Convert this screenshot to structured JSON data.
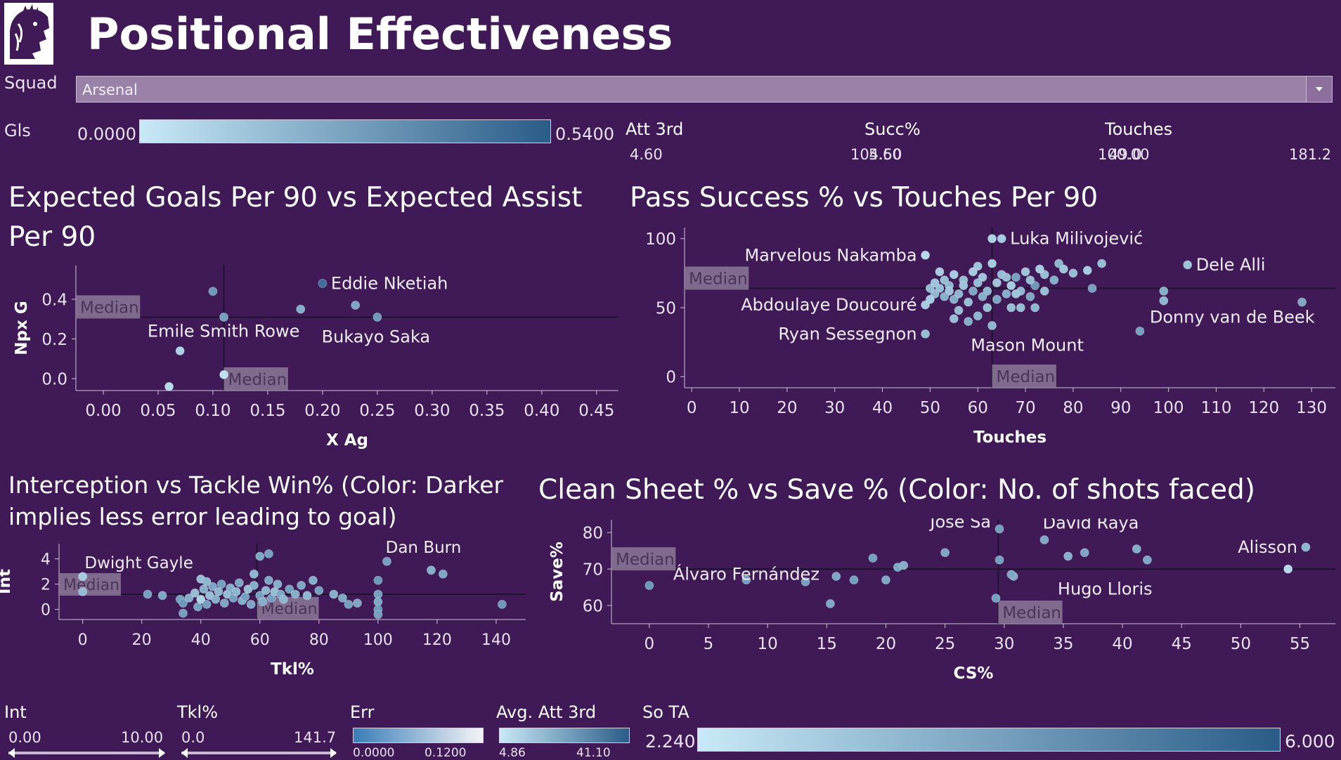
{
  "page": {
    "title": "Positional Effectiveness"
  },
  "squad": {
    "label": "Squad",
    "value": "Arsenal"
  },
  "colors": {
    "background": "#3f1a56",
    "marker_dark": "#2d5f8b",
    "marker_mid": "#4a8bc0",
    "marker_light": "#bfe3f4",
    "median_box": "#8c7a98",
    "median_line": "#1f1430"
  },
  "legends": {
    "gls": {
      "label": "Gls",
      "min": "0.0000",
      "max": "0.5400"
    },
    "att3rd": {
      "label": "Att 3rd",
      "min": "4.60",
      "max": "104.50"
    },
    "succ": {
      "label": "Succ%",
      "min": "5.60",
      "max": "100.00"
    },
    "touches": {
      "label": "Touches",
      "min": "49.0",
      "max": "181.2"
    },
    "int": {
      "label": "Int",
      "min": "0.00",
      "max": "10.00"
    },
    "tkl": {
      "label": "Tkl%",
      "min": "0.0",
      "max": "141.7"
    },
    "err": {
      "label": "Err",
      "min": "0.0000",
      "max": "0.1200"
    },
    "avgatt": {
      "label": "Avg. Att 3rd",
      "min": "4.86",
      "max": "41.10"
    },
    "sota": {
      "label": "So TA",
      "min": "2.240",
      "max": "6.000"
    }
  },
  "chart_data": [
    {
      "id": "xg",
      "type": "scatter",
      "title": "Expected Goals Per 90 vs Expected Assist Per 90",
      "xlabel": "X Ag",
      "ylabel": "Npx G",
      "xlim": [
        -0.025,
        0.47
      ],
      "ylim": [
        -0.06,
        0.57
      ],
      "xticks": [
        0.0,
        0.05,
        0.1,
        0.15,
        0.2,
        0.25,
        0.3,
        0.35,
        0.4,
        0.45
      ],
      "xtick_labels": [
        "0.00",
        "0.05",
        "0.10",
        "0.15",
        "0.20",
        "0.25",
        "0.30",
        "0.35",
        "0.40",
        "0.45"
      ],
      "yticks": [
        0.0,
        0.2,
        0.4
      ],
      "ytick_labels": [
        "0.0",
        "0.2",
        "0.4"
      ],
      "median_x": 0.11,
      "median_y": 0.31,
      "median_label": "Median",
      "points": [
        {
          "x": 0.2,
          "y": 0.48,
          "c": 0.85,
          "label": "Eddie Nketiah"
        },
        {
          "x": 0.1,
          "y": 0.44,
          "c": 0.55
        },
        {
          "x": 0.23,
          "y": 0.37,
          "c": 0.45
        },
        {
          "x": 0.18,
          "y": 0.35,
          "c": 0.4
        },
        {
          "x": 0.11,
          "y": 0.31,
          "c": 0.5
        },
        {
          "x": 0.25,
          "y": 0.31,
          "c": 0.55,
          "label": "Bukayo Saka"
        },
        {
          "x": 0.07,
          "y": 0.14,
          "c": 0.15,
          "label": "Emile Smith Rowe"
        },
        {
          "x": 0.11,
          "y": 0.02,
          "c": 0.05
        },
        {
          "x": 0.06,
          "y": -0.04,
          "c": 0.1
        }
      ]
    },
    {
      "id": "pass",
      "type": "scatter",
      "title": "Pass Success % vs Touches Per 90",
      "xlabel": "Touches",
      "ylabel": "",
      "xlim": [
        -1.5,
        135
      ],
      "ylim": [
        -8,
        108
      ],
      "xticks": [
        0,
        10,
        20,
        30,
        40,
        50,
        60,
        70,
        80,
        90,
        100,
        110,
        120,
        130
      ],
      "xtick_labels": [
        "0",
        "10",
        "20",
        "30",
        "40",
        "50",
        "60",
        "70",
        "80",
        "90",
        "100",
        "110",
        "120",
        "130"
      ],
      "yticks": [
        0,
        50,
        100
      ],
      "ytick_labels": [
        "0",
        "50",
        "100"
      ],
      "median_x": 63,
      "median_y": 64,
      "median_label": "Median",
      "points": [
        {
          "x": 65,
          "y": 100,
          "c": 0.2,
          "label": "Luka Milivojević"
        },
        {
          "x": 63,
          "y": 100,
          "c": 0.15
        },
        {
          "x": 49,
          "y": 88,
          "c": 0.1,
          "label": "Marvelous Nakamba"
        },
        {
          "x": 104,
          "y": 81,
          "c": 0.25,
          "label": "Dele Alli"
        },
        {
          "x": 49,
          "y": 52,
          "c": 0.2,
          "label": "Abdoulaye Doucouré"
        },
        {
          "x": 94,
          "y": 33,
          "c": 0.5,
          "label": "Donny van de Beek"
        },
        {
          "x": 49,
          "y": 31,
          "c": 0.3,
          "label": "Ryan Sessegnon"
        },
        {
          "x": 63,
          "y": 37,
          "c": 0.35,
          "label": "Mason Mount"
        },
        {
          "x": 128,
          "y": 54,
          "c": 0.45
        },
        {
          "x": 99,
          "y": 62,
          "c": 0.4
        },
        {
          "x": 99,
          "y": 55,
          "c": 0.35
        },
        {
          "x": 86,
          "y": 82,
          "c": 0.3
        },
        {
          "x": 84,
          "y": 64,
          "c": 0.5
        },
        {
          "x": 83,
          "y": 77,
          "c": 0.2
        },
        {
          "x": 80,
          "y": 75,
          "c": 0.3
        },
        {
          "x": 78,
          "y": 78,
          "c": 0.25
        },
        {
          "x": 77,
          "y": 82,
          "c": 0.35
        },
        {
          "x": 76,
          "y": 70,
          "c": 0.4
        },
        {
          "x": 74,
          "y": 74,
          "c": 0.3
        },
        {
          "x": 73,
          "y": 78,
          "c": 0.2
        },
        {
          "x": 72,
          "y": 66,
          "c": 0.55
        },
        {
          "x": 71,
          "y": 70,
          "c": 0.3
        },
        {
          "x": 71,
          "y": 58,
          "c": 0.45
        },
        {
          "x": 70,
          "y": 76,
          "c": 0.25
        },
        {
          "x": 69,
          "y": 62,
          "c": 0.35
        },
        {
          "x": 69,
          "y": 50,
          "c": 0.3
        },
        {
          "x": 68,
          "y": 72,
          "c": 0.5
        },
        {
          "x": 67,
          "y": 66,
          "c": 0.2
        },
        {
          "x": 67,
          "y": 50,
          "c": 0.3
        },
        {
          "x": 66,
          "y": 60,
          "c": 0.4
        },
        {
          "x": 65,
          "y": 74,
          "c": 0.3
        },
        {
          "x": 64,
          "y": 68,
          "c": 0.25
        },
        {
          "x": 64,
          "y": 56,
          "c": 0.45
        },
        {
          "x": 63,
          "y": 82,
          "c": 0.2
        },
        {
          "x": 62,
          "y": 62,
          "c": 0.35
        },
        {
          "x": 62,
          "y": 50,
          "c": 0.3
        },
        {
          "x": 61,
          "y": 72,
          "c": 0.25
        },
        {
          "x": 61,
          "y": 58,
          "c": 0.4
        },
        {
          "x": 60,
          "y": 68,
          "c": 0.3
        },
        {
          "x": 60,
          "y": 44,
          "c": 0.35
        },
        {
          "x": 59,
          "y": 76,
          "c": 0.2
        },
        {
          "x": 59,
          "y": 62,
          "c": 0.45
        },
        {
          "x": 58,
          "y": 54,
          "c": 0.3
        },
        {
          "x": 58,
          "y": 40,
          "c": 0.4
        },
        {
          "x": 57,
          "y": 70,
          "c": 0.3
        },
        {
          "x": 57,
          "y": 66,
          "c": 0.25
        },
        {
          "x": 56,
          "y": 60,
          "c": 0.35
        },
        {
          "x": 56,
          "y": 48,
          "c": 0.3
        },
        {
          "x": 55,
          "y": 74,
          "c": 0.2
        },
        {
          "x": 55,
          "y": 56,
          "c": 0.4
        },
        {
          "x": 55,
          "y": 42,
          "c": 0.3
        },
        {
          "x": 54,
          "y": 66,
          "c": 0.35
        },
        {
          "x": 54,
          "y": 62,
          "c": 0.25
        },
        {
          "x": 53,
          "y": 70,
          "c": 0.3
        },
        {
          "x": 53,
          "y": 58,
          "c": 0.4
        },
        {
          "x": 52,
          "y": 76,
          "c": 0.2
        },
        {
          "x": 52,
          "y": 64,
          "c": 0.3
        },
        {
          "x": 51,
          "y": 68,
          "c": 0.25
        },
        {
          "x": 51,
          "y": 60,
          "c": 0.35
        },
        {
          "x": 50,
          "y": 64,
          "c": 0.3
        },
        {
          "x": 50,
          "y": 56,
          "c": 0.2
        },
        {
          "x": 66,
          "y": 72,
          "c": 0.3
        },
        {
          "x": 68,
          "y": 60,
          "c": 0.25
        },
        {
          "x": 72,
          "y": 50,
          "c": 0.35
        },
        {
          "x": 74,
          "y": 62,
          "c": 0.3
        },
        {
          "x": 60,
          "y": 80,
          "c": 0.25
        }
      ]
    },
    {
      "id": "int",
      "type": "scatter",
      "title": "Interception vs Tackle Win% (Color: Darker implies less error leading to goal)",
      "xlabel": "Tkl%",
      "ylabel": "Int",
      "xlim": [
        -8,
        150
      ],
      "ylim": [
        -0.8,
        5.2
      ],
      "xticks": [
        0,
        20,
        40,
        60,
        80,
        100,
        120,
        140
      ],
      "xtick_labels": [
        "0",
        "20",
        "40",
        "60",
        "80",
        "100",
        "120",
        "140"
      ],
      "yticks": [
        0,
        2,
        4
      ],
      "ytick_labels": [
        "0",
        "2",
        "4"
      ],
      "median_x": 59,
      "median_y": 1.2,
      "median_label": "Median",
      "points": [
        {
          "x": 0,
          "y": 2.6,
          "c": 0.2,
          "label": "Dwight Gayle"
        },
        {
          "x": 103,
          "y": 3.8,
          "c": 0.5,
          "label": "Dan Burn"
        },
        {
          "x": 0,
          "y": 1.4,
          "c": 0.3
        },
        {
          "x": 118,
          "y": 3.1,
          "c": 0.4
        },
        {
          "x": 122,
          "y": 2.8,
          "c": 0.45
        },
        {
          "x": 142,
          "y": 0.4,
          "c": 0.55
        },
        {
          "x": 63,
          "y": 4.4,
          "c": 0.5
        },
        {
          "x": 60,
          "y": 4.2,
          "c": 0.45
        },
        {
          "x": 100,
          "y": 2.3,
          "c": 0.55
        },
        {
          "x": 100,
          "y": 1.2,
          "c": 0.5
        },
        {
          "x": 100,
          "y": 0.6,
          "c": 0.45
        },
        {
          "x": 100,
          "y": 0.0,
          "c": 0.55
        },
        {
          "x": 100,
          "y": -0.4,
          "c": 0.5
        },
        {
          "x": 88,
          "y": 0.9,
          "c": 0.45
        },
        {
          "x": 85,
          "y": 1.2,
          "c": 0.4
        },
        {
          "x": 90,
          "y": 0.4,
          "c": 0.5
        },
        {
          "x": 93,
          "y": 0.5,
          "c": 0.45
        },
        {
          "x": 22,
          "y": 1.2,
          "c": 0.5
        },
        {
          "x": 27,
          "y": 1.1,
          "c": 0.45
        },
        {
          "x": 33,
          "y": 0.8,
          "c": 0.5
        },
        {
          "x": 34,
          "y": 0.5,
          "c": 0.55
        },
        {
          "x": 34,
          "y": -0.3,
          "c": 0.5
        },
        {
          "x": 36,
          "y": 0.9,
          "c": 0.4
        },
        {
          "x": 38,
          "y": 1.3,
          "c": 0.3
        },
        {
          "x": 39,
          "y": 0.2,
          "c": 0.5
        },
        {
          "x": 40,
          "y": 2.4,
          "c": 0.3
        },
        {
          "x": 40,
          "y": 0.8,
          "c": 0.15
        },
        {
          "x": 41,
          "y": 1.6,
          "c": 0.4
        },
        {
          "x": 42,
          "y": 2.2,
          "c": 0.35
        },
        {
          "x": 42,
          "y": 0.4,
          "c": 0.5
        },
        {
          "x": 43,
          "y": 1.1,
          "c": 0.3
        },
        {
          "x": 44,
          "y": 1.8,
          "c": 0.45
        },
        {
          "x": 45,
          "y": 0.8,
          "c": 0.4
        },
        {
          "x": 46,
          "y": 1.4,
          "c": 0.35
        },
        {
          "x": 47,
          "y": 2.0,
          "c": 0.5
        },
        {
          "x": 48,
          "y": 0.5,
          "c": 0.45
        },
        {
          "x": 49,
          "y": 1.2,
          "c": 0.3
        },
        {
          "x": 50,
          "y": 1.7,
          "c": 0.4
        },
        {
          "x": 51,
          "y": 0.9,
          "c": 0.5
        },
        {
          "x": 52,
          "y": 1.4,
          "c": 0.35
        },
        {
          "x": 53,
          "y": 2.1,
          "c": 0.45
        },
        {
          "x": 54,
          "y": 0.7,
          "c": 0.4
        },
        {
          "x": 55,
          "y": 1.0,
          "c": 0.5
        },
        {
          "x": 56,
          "y": 1.6,
          "c": 0.3
        },
        {
          "x": 57,
          "y": 0.4,
          "c": 0.45
        },
        {
          "x": 58,
          "y": 1.9,
          "c": 0.4
        },
        {
          "x": 58,
          "y": 2.8,
          "c": 0.35
        },
        {
          "x": 60,
          "y": 1.1,
          "c": 0.5
        },
        {
          "x": 61,
          "y": 0.6,
          "c": 0.4
        },
        {
          "x": 62,
          "y": 1.5,
          "c": 0.35
        },
        {
          "x": 63,
          "y": 2.3,
          "c": 0.45
        },
        {
          "x": 64,
          "y": 0.9,
          "c": 0.5
        },
        {
          "x": 65,
          "y": 1.4,
          "c": 0.3
        },
        {
          "x": 66,
          "y": 2.0,
          "c": 0.4
        },
        {
          "x": 67,
          "y": 1.2,
          "c": 0.45
        },
        {
          "x": 68,
          "y": 0.8,
          "c": 0.35
        },
        {
          "x": 70,
          "y": 1.6,
          "c": 0.5
        },
        {
          "x": 72,
          "y": 1.2,
          "c": 0.4
        },
        {
          "x": 74,
          "y": 1.9,
          "c": 0.45
        },
        {
          "x": 76,
          "y": 1.1,
          "c": 0.35
        },
        {
          "x": 78,
          "y": 2.3,
          "c": 0.4
        },
        {
          "x": 80,
          "y": 1.5,
          "c": 0.5
        }
      ]
    },
    {
      "id": "cs",
      "type": "scatter",
      "title": "Clean Sheet % vs Save % (Color: No. of shots faced)",
      "xlabel": "CS%",
      "ylabel": "Save%",
      "xlim": [
        -3.2,
        58
      ],
      "ylim": [
        55,
        83.5
      ],
      "xticks": [
        0,
        5,
        10,
        15,
        20,
        25,
        30,
        35,
        40,
        45,
        50,
        55
      ],
      "xtick_labels": [
        "0",
        "5",
        "10",
        "15",
        "20",
        "25",
        "30",
        "35",
        "40",
        "45",
        "50",
        "55"
      ],
      "yticks": [
        60,
        70,
        80
      ],
      "ytick_labels": [
        "60",
        "70",
        "80"
      ],
      "median_x": 29.5,
      "median_y": 70.0,
      "median_label": "Median",
      "points": [
        {
          "x": 29.6,
          "y": 81,
          "c": 0.5,
          "label": "José Sá"
        },
        {
          "x": 33.4,
          "y": 78,
          "c": 0.45,
          "label": "David Raya"
        },
        {
          "x": 55.5,
          "y": 76,
          "c": 0.35,
          "label": "Alisson"
        },
        {
          "x": 54.0,
          "y": 70,
          "c": 0.1
        },
        {
          "x": 30.8,
          "y": 68,
          "c": 0.45,
          "label": "Hugo Lloris"
        },
        {
          "x": 0,
          "y": 65.5,
          "c": 0.55,
          "label": "Álvaro Fernández"
        },
        {
          "x": 8.2,
          "y": 67,
          "c": 0.5
        },
        {
          "x": 13.2,
          "y": 66.5,
          "c": 0.5
        },
        {
          "x": 15.3,
          "y": 60.5,
          "c": 0.45
        },
        {
          "x": 15.8,
          "y": 68,
          "c": 0.45
        },
        {
          "x": 17.3,
          "y": 67,
          "c": 0.5
        },
        {
          "x": 18.9,
          "y": 73,
          "c": 0.5
        },
        {
          "x": 20.0,
          "y": 67,
          "c": 0.45
        },
        {
          "x": 21.0,
          "y": 70.5,
          "c": 0.45
        },
        {
          "x": 21.5,
          "y": 71,
          "c": 0.4
        },
        {
          "x": 25.0,
          "y": 74.5,
          "c": 0.45
        },
        {
          "x": 29.3,
          "y": 62,
          "c": 0.5
        },
        {
          "x": 29.6,
          "y": 72.5,
          "c": 0.5
        },
        {
          "x": 30.6,
          "y": 68.5,
          "c": 0.45
        },
        {
          "x": 35.4,
          "y": 73.5,
          "c": 0.4
        },
        {
          "x": 36.8,
          "y": 74.5,
          "c": 0.45
        },
        {
          "x": 41.2,
          "y": 75.5,
          "c": 0.4
        },
        {
          "x": 42.1,
          "y": 72.5,
          "c": 0.45
        }
      ]
    }
  ]
}
